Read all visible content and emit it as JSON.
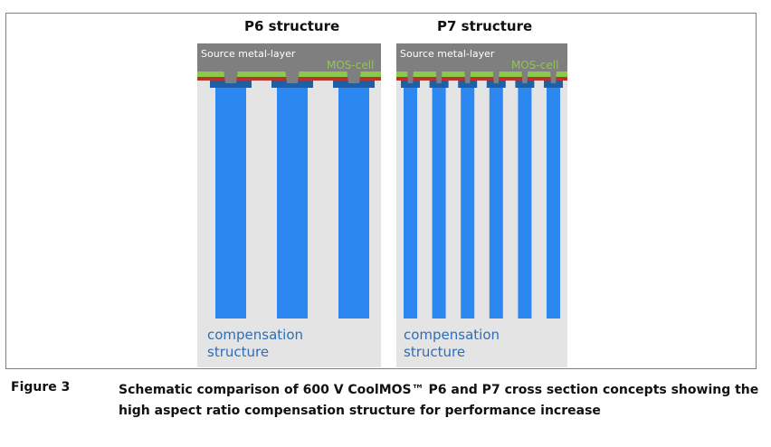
{
  "panels": [
    {
      "title": "P6 structure",
      "source_label": "Source metal-layer",
      "mos_label": "MOS-cell",
      "comp_label": [
        "compensation",
        "structure"
      ],
      "pillar_count": 3
    },
    {
      "title": "P7 structure",
      "source_label": "Source metal-layer",
      "mos_label": "MOS-cell",
      "comp_label": [
        "compensation",
        "structure"
      ],
      "pillar_count": 6
    }
  ],
  "colors": {
    "panel_bg": "#e4e4e4",
    "metal": "#7f7f7f",
    "mos_green": "#8cc94a",
    "oxide_red": "#b5332a",
    "cap_blue": "#1f5fa8",
    "pillar_blue": "#2d87f0"
  },
  "figure": {
    "label": "Figure 3",
    "caption_line1": "Schematic comparison of  600 V CoolMOS™ P6 and P7 cross section concepts showing the",
    "caption_line2": "high aspect ratio compensation structure for performance increase"
  }
}
